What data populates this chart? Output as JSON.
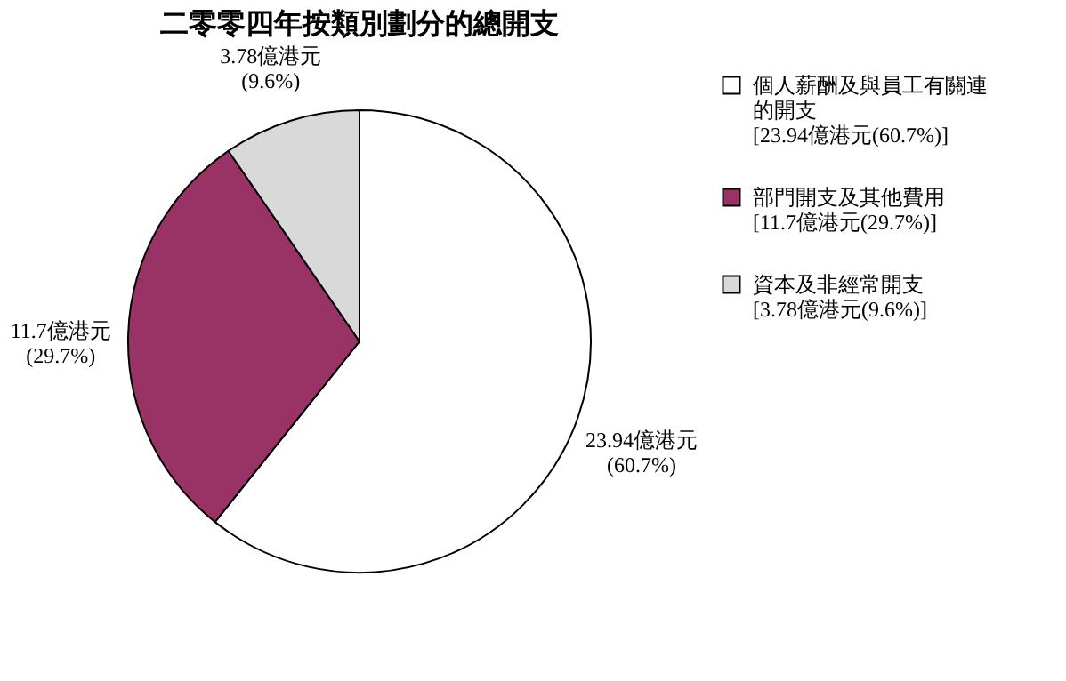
{
  "chart_data": {
    "type": "pie",
    "title": "二零零四年按類別劃分的總開支",
    "categories": [
      "個人薪酬及與員工有關連的開支[23.94億港元(60.7%)]",
      "部門開支及其他費用[11.7億港元(29.7%)]",
      "資本及非經常開支[3.78億港元(9.6%)]"
    ],
    "values": [
      23.94,
      11.7,
      3.78
    ],
    "colors": [
      "#ffffff",
      "#993366",
      "#d9d9d9"
    ],
    "value_labels": [
      "23.94億港元\n(60.7%)",
      "11.7億港元\n(29.7%)",
      "3.78億港元\n(9.6%)"
    ],
    "legend": "right"
  }
}
